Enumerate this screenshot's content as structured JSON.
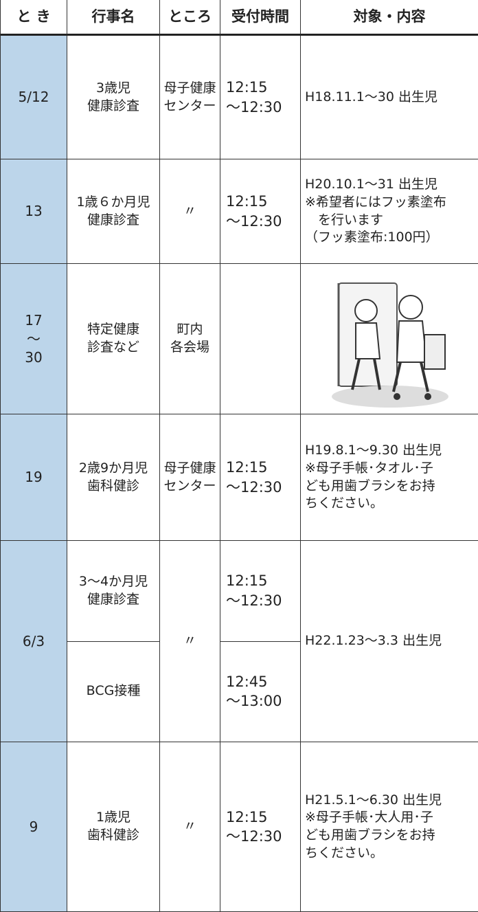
{
  "header": [
    "と き",
    "行事名",
    "ところ",
    "受付時間",
    "対象・内容"
  ],
  "rows": [
    {
      "date": "5/12",
      "events": [
        {
          "name": "3歳児\n健康診査",
          "time": "12:15\n～12:30"
        }
      ],
      "place": "母子健康\nセンター",
      "target": "H18.11.1～30 出生児"
    },
    {
      "date": "13",
      "events": [
        {
          "name": "1歳６か月児\n健康診査",
          "time": "12:15\n～12:30"
        }
      ],
      "place": "〃",
      "target": "H20.10.1～31 出生児\n※希望者にはフッ素塗布\n　を行います\n（フッ素塗布:100円）"
    },
    {
      "date": "17\n～\n30",
      "events": [
        {
          "name": "特定健康\n診査など"
        }
      ],
      "place": "町内\n各会場"
    },
    {
      "date": "19",
      "events": [
        {
          "name": "2歳9か月児\n歯科健診",
          "time": "12:15\n～12:30"
        }
      ],
      "place": "母子健康\nセンター",
      "target": "H19.8.1～9.30 出生児\n※母子手帳･タオル･子\nども用歯ブラシをお持\nちください。"
    },
    {
      "date": "6/3",
      "events": [
        {
          "name": "3～4か月児\n健康診査",
          "time": "12:15\n～12:30"
        },
        {
          "name": "BCG接種",
          "time": "12:45\n～13:00"
        }
      ],
      "place": "〃",
      "target": "H22.1.23～3.3 出生児"
    },
    {
      "date": "9",
      "events": [
        {
          "name": "1歳児\n歯科健診",
          "time": "12:15\n～12:30"
        }
      ],
      "place": "〃",
      "target": "H21.5.1～6.30 出生児\n※母子手帳･大人用･子\nども用歯ブラシをお持\nちください。"
    }
  ]
}
